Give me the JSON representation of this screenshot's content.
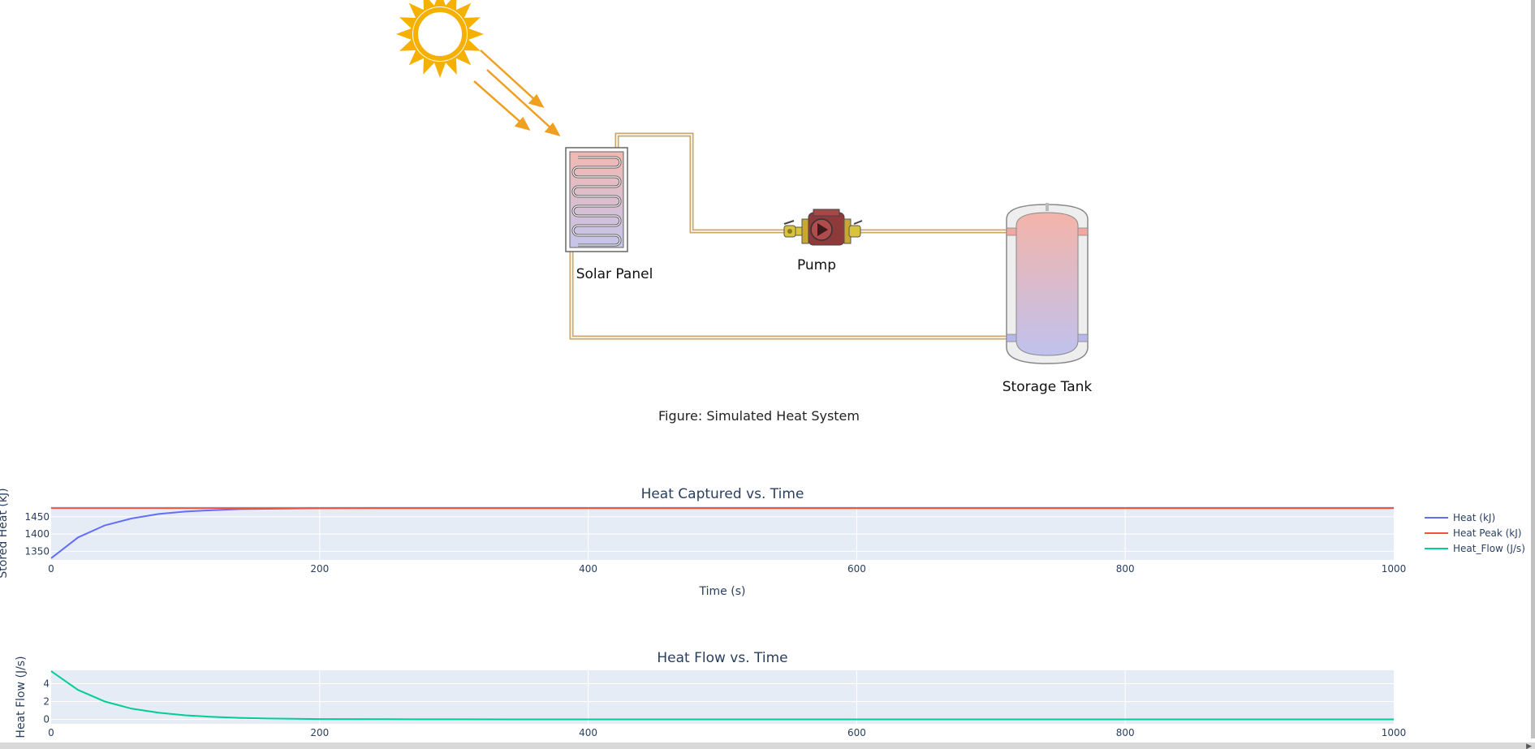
{
  "diagram": {
    "solar_panel_label": "Solar Panel",
    "pump_label": "Pump",
    "tank_label": "Storage Tank",
    "caption": "Figure: Simulated Heat System"
  },
  "colors": {
    "sun": "#f5b000",
    "arrow": "#f0a020",
    "pipe": "#c9a86a",
    "panel_top": "#f2b8b0",
    "panel_bottom": "#c4c4ec",
    "plot_bg": "#e5ecf6",
    "heat": "#636efa",
    "heat_peak": "#ef553b",
    "heat_flow": "#00cc96"
  },
  "chart_data": [
    {
      "type": "line",
      "title": "Heat Captured vs. Time",
      "xlabel": "Time (s)",
      "ylabel": "Stored Heat (kJ)",
      "xlim": [
        0,
        1000
      ],
      "ylim": [
        1325,
        1480
      ],
      "xticks": [
        0,
        200,
        400,
        600,
        800,
        1000
      ],
      "yticks": [
        1350,
        1400,
        1450
      ],
      "grid": true,
      "legend": "right",
      "series": [
        {
          "name": "Heat (kJ)",
          "x": [
            0,
            20,
            40,
            60,
            80,
            100,
            120,
            140,
            160,
            180,
            200,
            250,
            300,
            400,
            500,
            600,
            700,
            800,
            900,
            1000
          ],
          "y": [
            1330,
            1390,
            1425,
            1445,
            1458,
            1465,
            1469,
            1472,
            1473,
            1474,
            1474.5,
            1475,
            1475,
            1475,
            1475,
            1475,
            1475,
            1475,
            1475,
            1475
          ]
        },
        {
          "name": "Heat Peak (kJ)",
          "x": [
            0,
            1000
          ],
          "y": [
            1475,
            1475
          ]
        },
        {
          "name": "Heat_Flow (J/s)",
          "x": [],
          "y": []
        }
      ]
    },
    {
      "type": "line",
      "title": "Heat Flow vs. Time",
      "xlabel": "",
      "ylabel": "Heat Flow (J/s)",
      "xlim": [
        0,
        1000
      ],
      "ylim": [
        -0.5,
        5.5
      ],
      "xticks": [
        0,
        200,
        400,
        600,
        800,
        1000
      ],
      "yticks": [
        0,
        2,
        4
      ],
      "grid": true,
      "series": [
        {
          "name": "Heat_Flow (J/s)",
          "x": [
            0,
            20,
            40,
            60,
            80,
            100,
            120,
            140,
            160,
            180,
            200,
            250,
            300,
            400,
            500,
            600,
            700,
            800,
            900,
            1000
          ],
          "y": [
            5.4,
            3.3,
            2.0,
            1.2,
            0.75,
            0.45,
            0.28,
            0.17,
            0.1,
            0.06,
            0.04,
            0.02,
            0.01,
            0,
            0,
            0,
            0,
            0,
            0,
            0
          ]
        }
      ]
    }
  ]
}
